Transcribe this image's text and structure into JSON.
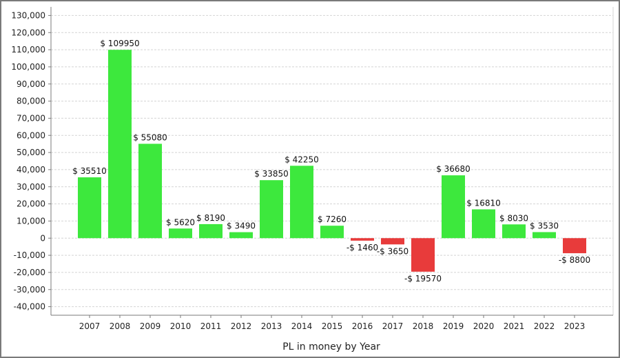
{
  "chart_data": {
    "type": "bar",
    "title": "",
    "xlabel": "PL in money by Year",
    "ylabel": "",
    "ylim": [
      -45000,
      135000
    ],
    "yticks": [
      -40000,
      -30000,
      -20000,
      -10000,
      0,
      10000,
      20000,
      30000,
      40000,
      50000,
      60000,
      70000,
      80000,
      90000,
      100000,
      110000,
      120000,
      130000
    ],
    "ytick_labels": [
      "-40,000",
      "-30,000",
      "-20,000",
      "-10,000",
      "0",
      "10,000",
      "20,000",
      "30,000",
      "40,000",
      "50,000",
      "60,000",
      "70,000",
      "80,000",
      "90,000",
      "100,000",
      "110,000",
      "120,000",
      "130,000"
    ],
    "grid": true,
    "categories": [
      "2007",
      "2008",
      "2009",
      "2010",
      "2011",
      "2012",
      "2013",
      "2014",
      "2015",
      "2016",
      "2017",
      "2018",
      "2019",
      "2020",
      "2021",
      "2022",
      "2023"
    ],
    "values": [
      35510,
      109950,
      55080,
      5620,
      8190,
      3490,
      33850,
      42250,
      7260,
      -1460,
      -3650,
      -19570,
      36680,
      16810,
      8030,
      3530,
      -8800
    ],
    "data_labels": [
      "$ 35510",
      "$ 109950",
      "$ 55080",
      "$ 5620",
      "$ 8190",
      "$ 3490",
      "$ 33850",
      "$ 42250",
      "$ 7260",
      "-$ 1460",
      "-$ 3650",
      "-$ 19570",
      "$ 36680",
      "$ 16810",
      "$ 8030",
      "$ 3530",
      "-$ 8800"
    ],
    "colors": {
      "positive": "#3de83d",
      "negative": "#e83b3b",
      "grid": "#d4d4d4",
      "axis": "#7a7a7a"
    }
  }
}
